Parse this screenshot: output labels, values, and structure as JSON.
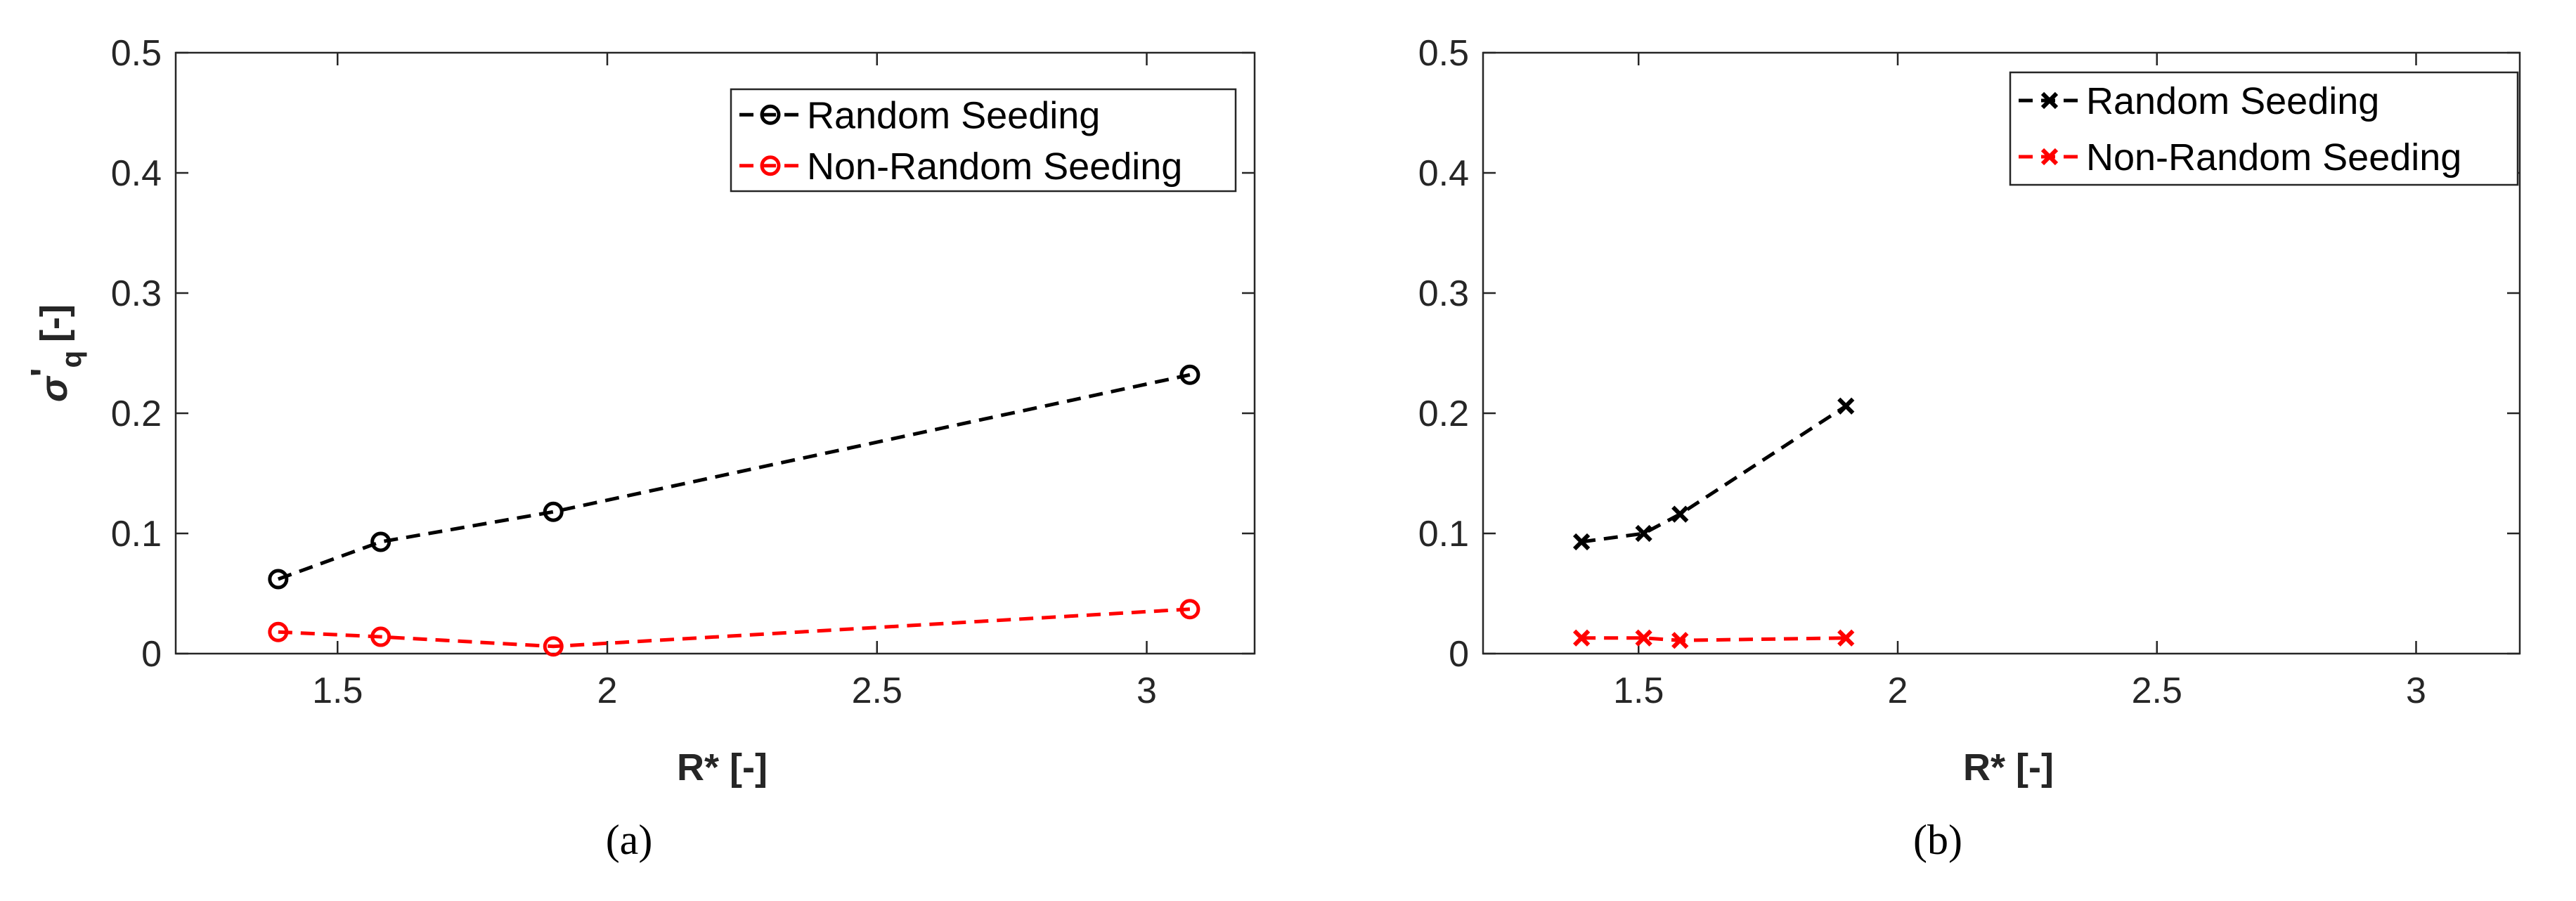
{
  "chart_data": [
    {
      "type": "line",
      "panel_label": "a",
      "caption": "(a)",
      "xlabel": "R* [-]",
      "ylabel": {
        "symbol": "σ",
        "prime": "'",
        "subscript": "q",
        "unit": "[-]"
      },
      "xlim": [
        1.2,
        3.2
      ],
      "ylim": [
        0,
        0.5
      ],
      "xticks": [
        1.5,
        2,
        2.5,
        3
      ],
      "yticks": [
        0,
        0.1,
        0.2,
        0.3,
        0.4,
        0.5
      ],
      "xtick_labels": [
        "1.5",
        "2",
        "2.5",
        "3"
      ],
      "ytick_labels": [
        "0",
        "0.1",
        "0.2",
        "0.3",
        "0.4",
        "0.5"
      ],
      "legend_position": "top-right",
      "series": [
        {
          "name": "Random Seeding",
          "color": "#000000",
          "marker": "circle",
          "line_style": "dashed",
          "x": [
            1.39,
            1.58,
            1.9,
            3.08
          ],
          "y": [
            0.062,
            0.093,
            0.118,
            0.232
          ]
        },
        {
          "name": "Non-Random Seeding",
          "color": "#ff0000",
          "marker": "circle",
          "line_style": "dashed",
          "x": [
            1.39,
            1.58,
            1.9,
            3.08
          ],
          "y": [
            0.018,
            0.014,
            0.006,
            0.037
          ]
        }
      ]
    },
    {
      "type": "line",
      "panel_label": "b",
      "caption": "(b)",
      "xlabel": "R* [-]",
      "ylabel": {
        "symbol": "σ",
        "prime": "'",
        "subscript": "q",
        "unit": "[-]"
      },
      "xlim": [
        1.2,
        3.2
      ],
      "ylim": [
        0,
        0.5
      ],
      "xticks": [
        1.5,
        2,
        2.5,
        3
      ],
      "yticks": [
        0,
        0.1,
        0.2,
        0.3,
        0.4,
        0.5
      ],
      "xtick_labels": [
        "1.5",
        "2",
        "2.5",
        "3"
      ],
      "ytick_labels": [
        "0",
        "0.1",
        "0.2",
        "0.3",
        "0.4",
        "0.5"
      ],
      "legend_position": "top-right",
      "series": [
        {
          "name": "Random Seeding",
          "color": "#000000",
          "marker": "x",
          "line_style": "dashed",
          "x": [
            1.39,
            1.51,
            1.58,
            1.9
          ],
          "y": [
            0.093,
            0.1,
            0.116,
            0.206
          ]
        },
        {
          "name": "Non-Random Seeding",
          "color": "#ff0000",
          "marker": "x",
          "line_style": "dashed",
          "x": [
            1.39,
            1.51,
            1.58,
            1.9
          ],
          "y": [
            0.013,
            0.013,
            0.011,
            0.013
          ]
        }
      ]
    }
  ]
}
